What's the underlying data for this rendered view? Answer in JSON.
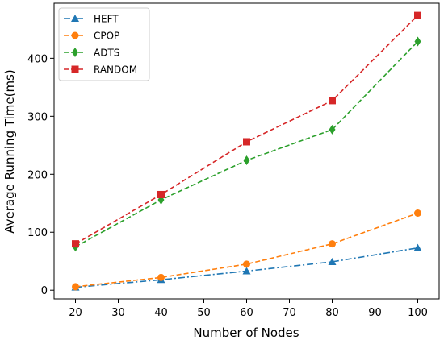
{
  "chart_data": {
    "type": "line",
    "title": "",
    "xlabel": "Number of Nodes",
    "ylabel": "Average Running Time(ms)",
    "x": [
      20,
      40,
      60,
      80,
      100
    ],
    "xlim": [
      15,
      105
    ],
    "ylim": [
      -15,
      495
    ],
    "xticks": [
      20,
      30,
      40,
      50,
      60,
      70,
      80,
      90,
      100
    ],
    "yticks": [
      0,
      100,
      200,
      300,
      400
    ],
    "grid": false,
    "legend_position": "top-left",
    "series": [
      {
        "name": "HEFT",
        "values": [
          5,
          18,
          33,
          49,
          73
        ],
        "color": "#1f77b4",
        "marker": "triangle",
        "dash": "dashdot"
      },
      {
        "name": "CPOP",
        "values": [
          6,
          22,
          45,
          80,
          133
        ],
        "color": "#ff7f0e",
        "marker": "circle",
        "dash": "dashed"
      },
      {
        "name": "ADTS",
        "values": [
          75,
          156,
          224,
          277,
          429
        ],
        "color": "#2ca02c",
        "marker": "diamond",
        "dash": "dashed"
      },
      {
        "name": "RANDOM",
        "values": [
          80,
          165,
          256,
          327,
          474
        ],
        "color": "#d62728",
        "marker": "square",
        "dash": "dashed"
      }
    ]
  }
}
